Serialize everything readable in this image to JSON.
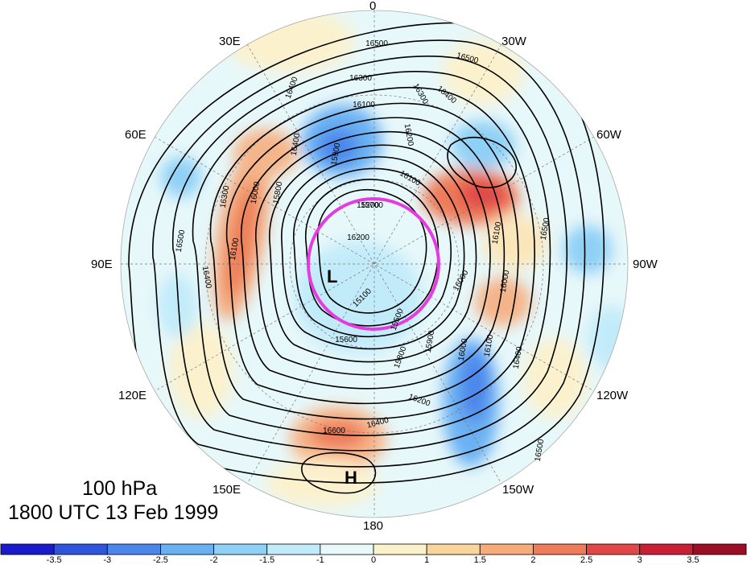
{
  "caption": {
    "level": "100 hPa",
    "time": "1800 UTC 13 Feb 1999"
  },
  "longitude_labels": [
    "0",
    "30W",
    "60W",
    "90W",
    "120W",
    "150W",
    "180",
    "150E",
    "120E",
    "90E",
    "60E",
    "30E"
  ],
  "centers": {
    "low": "L",
    "high": "H"
  },
  "contour_labels": [
    "16500",
    "16500",
    "16400",
    "16300",
    "16100",
    "16200",
    "16100",
    "15900",
    "15800",
    "15700",
    "16000",
    "16200",
    "16300",
    "16400",
    "16500",
    "16400",
    "16100",
    "16000",
    "15200",
    "15100",
    "15600",
    "15500",
    "15800",
    "16200",
    "16100",
    "16000",
    "15900",
    "16500",
    "16400",
    "16300",
    "16600",
    "16400",
    "16500",
    "16400",
    "16100",
    "16000"
  ],
  "colorbar": {
    "labels": [
      "-3.5",
      "-3",
      "-2.5",
      "-2",
      "-1.5",
      "-1",
      "0",
      "1",
      "1.5",
      "2",
      "2.5",
      "3",
      "3.5"
    ],
    "colors": [
      "#1a1acd",
      "#2f55de",
      "#4c86ec",
      "#6ab1f3",
      "#8fd0f6",
      "#c2ebfa",
      "#e9f9fb",
      "#fbf2cc",
      "#f9d59b",
      "#f5ab7a",
      "#ee7c5a",
      "#e14747",
      "#c81f35",
      "#9c0d26"
    ]
  },
  "highlight_circle_color": "#e53be0"
}
